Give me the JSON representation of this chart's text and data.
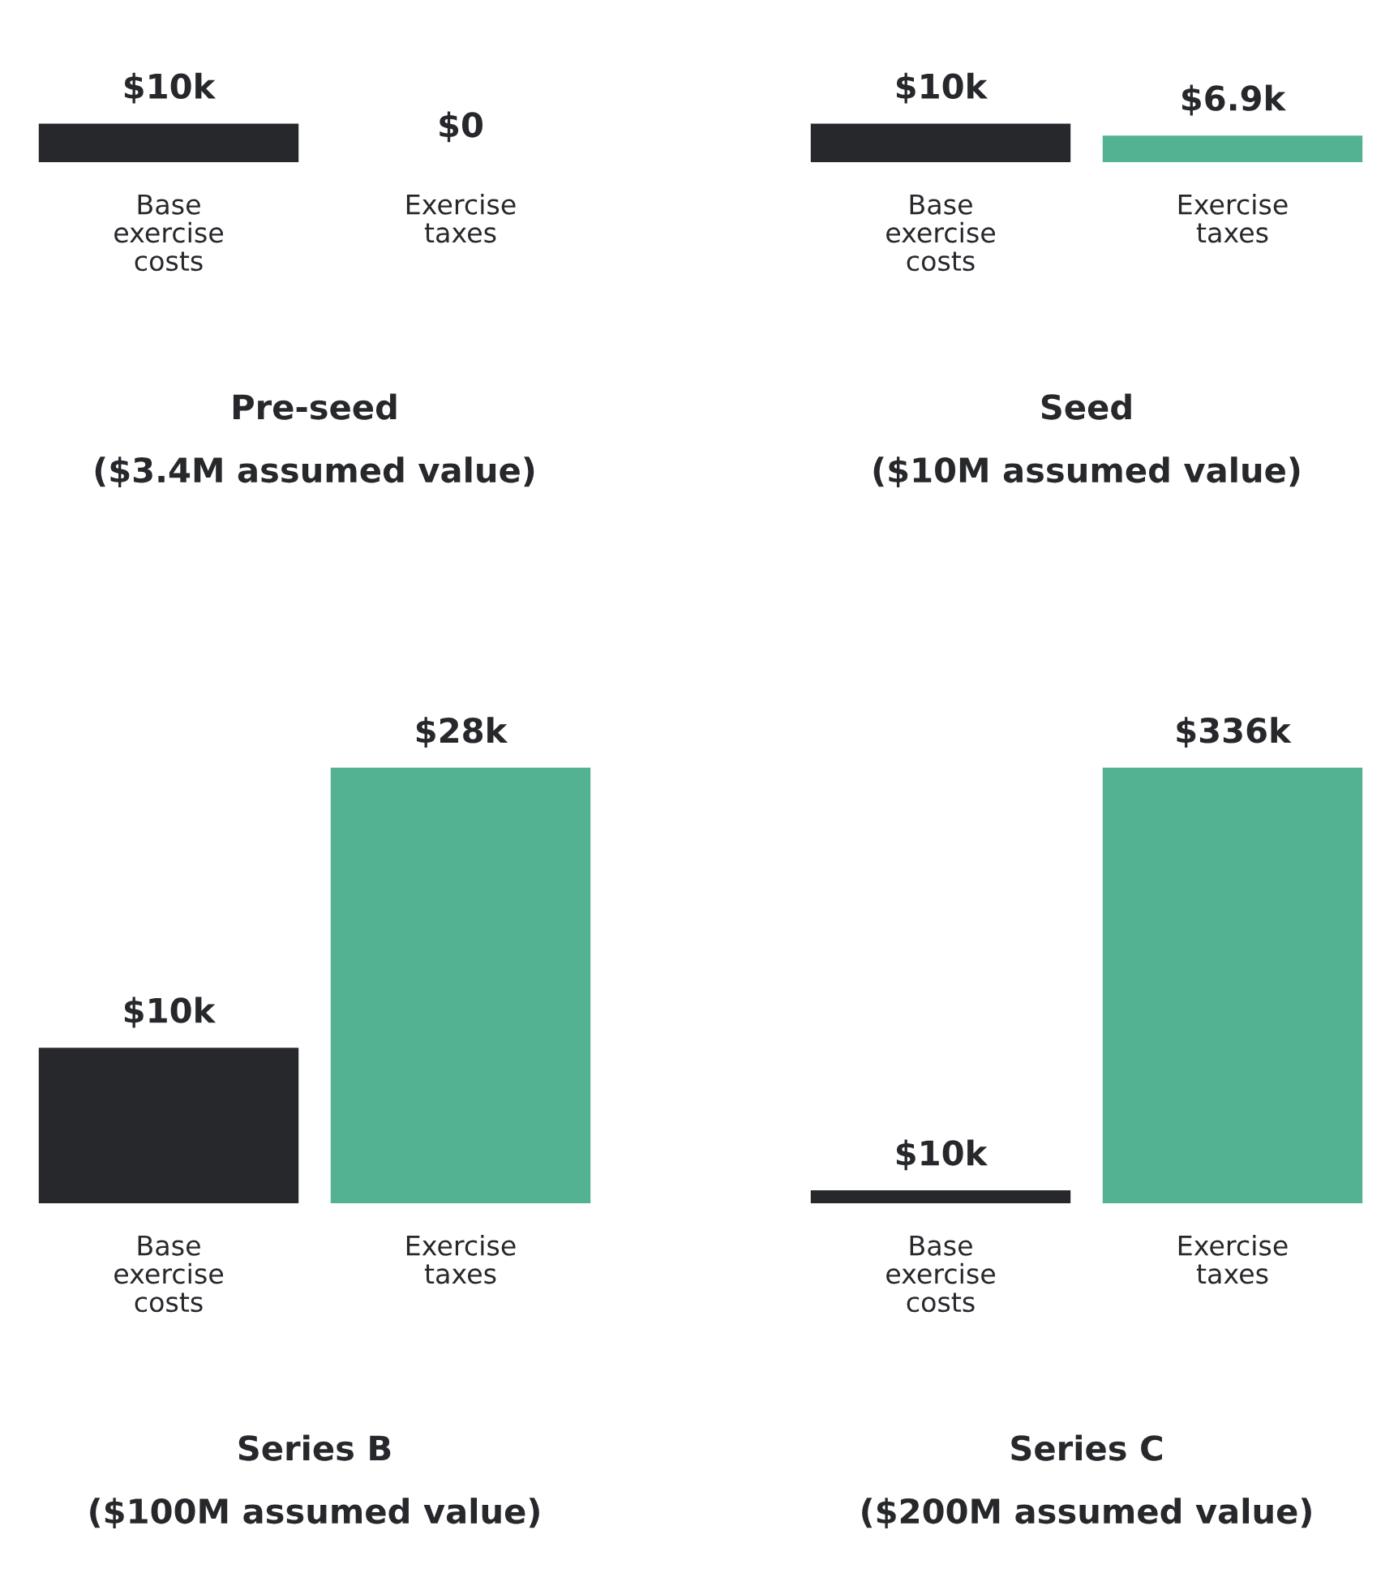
{
  "chart_data": [
    {
      "type": "bar",
      "title": "Pre-seed",
      "subtitle": "($3.4M assumed value)",
      "categories": [
        "Base exercise costs",
        "Exercise taxes"
      ],
      "values": [
        10,
        0
      ],
      "colors": [
        "#27282c",
        "#d9d9d9"
      ],
      "value_labels": [
        "$10k",
        "$0"
      ],
      "tick_labels": "x",
      "grid": false
    },
    {
      "type": "bar",
      "title": "Seed",
      "subtitle": "($10M assumed value)",
      "categories": [
        "Base exercise costs",
        "Exercise taxes"
      ],
      "values": [
        10,
        6.9
      ],
      "colors": [
        "#27282c",
        "#52b292"
      ],
      "value_labels": [
        "$10k",
        "$6.9k"
      ],
      "tick_labels": "x",
      "grid": false
    },
    {
      "type": "bar",
      "title": "Series B",
      "subtitle": "($100M assumed value)",
      "categories": [
        "Base exercise costs",
        "Exercise taxes"
      ],
      "values": [
        10,
        28
      ],
      "colors": [
        "#27282c",
        "#52b292"
      ],
      "value_labels": [
        "$10k",
        "$28k"
      ],
      "tick_labels": "x",
      "grid": false
    },
    {
      "type": "bar",
      "title": "Series C",
      "subtitle": "($200M assumed value)",
      "categories": [
        "Base exercise costs",
        "Exercise taxes"
      ],
      "values": [
        10,
        336
      ],
      "colors": [
        "#27282c",
        "#52b292"
      ],
      "value_labels": [
        "$10k",
        "$336k"
      ],
      "tick_labels": "x",
      "grid": false
    }
  ]
}
